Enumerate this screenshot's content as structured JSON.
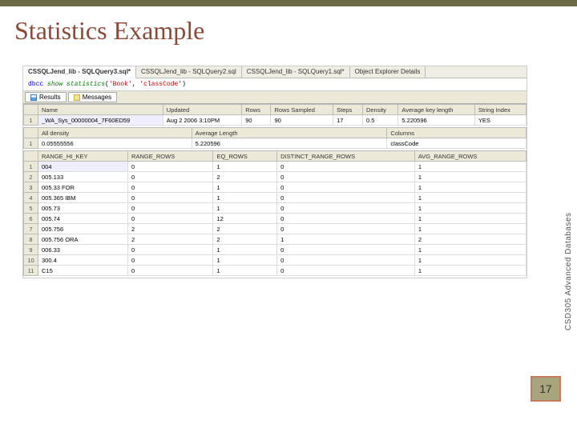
{
  "colors": {
    "topbar": "#6b6b47",
    "title": "#8a4a3a",
    "pagebox_border": "#c67b5a",
    "pagebox_bg": "#a8a57e"
  },
  "slide": {
    "title": "Statistics Example",
    "sidebar_label": "CSD305 Advanced Databases",
    "page_number": "17"
  },
  "tabs": [
    {
      "label": "CSSQLJend_lib - SQLQuery3.sql*",
      "active": true
    },
    {
      "label": "CSSQLJend_lib - SQLQuery2.sql",
      "active": false
    },
    {
      "label": "CSSQLJend_lib - SQLQuery1.sql*",
      "active": false
    },
    {
      "label": "Object Explorer Details",
      "active": false
    }
  ],
  "query": {
    "keyword1": "dbcc",
    "func": "show statistics",
    "paren_open": "(",
    "arg1": "'Book'",
    "comma": ",",
    "arg2": "'classCode'",
    "paren_close": ")"
  },
  "result_tabs": {
    "results": "Results",
    "messages": "Messages"
  },
  "grid1": {
    "headers": [
      "Name",
      "Updated",
      "Rows",
      "Rows Sampled",
      "Steps",
      "Density",
      "Average key length",
      "String Index"
    ],
    "row": [
      "_WA_Sys_00000004_7F60ED59",
      "Aug 2 2006 3:10PM",
      "90",
      "90",
      "17",
      "0.5",
      "5.220596",
      "YES"
    ]
  },
  "grid2": {
    "headers": [
      "All density",
      "Average Length",
      "Columns"
    ],
    "row": [
      "0.05555556",
      "5.220596",
      "classCode"
    ]
  },
  "grid3": {
    "headers": [
      "RANGE_HI_KEY",
      "RANGE_ROWS",
      "EQ_ROWS",
      "DISTINCT_RANGE_ROWS",
      "AVG_RANGE_ROWS"
    ],
    "rows": [
      [
        "1",
        "004",
        "0",
        "1",
        "0",
        "1"
      ],
      [
        "2",
        "005.133",
        "0",
        "2",
        "0",
        "1"
      ],
      [
        "3",
        "005.33 FOR",
        "0",
        "1",
        "0",
        "1"
      ],
      [
        "4",
        "005.365 IBM",
        "0",
        "1",
        "0",
        "1"
      ],
      [
        "5",
        "005.73",
        "0",
        "1",
        "0",
        "1"
      ],
      [
        "6",
        "005.74",
        "0",
        "12",
        "0",
        "1"
      ],
      [
        "7",
        "005.756",
        "2",
        "2",
        "0",
        "1"
      ],
      [
        "8",
        "005.756 ORA",
        "2",
        "2",
        "1",
        "2"
      ],
      [
        "9",
        "006.33",
        "0",
        "1",
        "0",
        "1"
      ],
      [
        "10",
        "300.4",
        "0",
        "1",
        "0",
        "1"
      ],
      [
        "11",
        "C15",
        "0",
        "1",
        "0",
        "1"
      ]
    ]
  }
}
